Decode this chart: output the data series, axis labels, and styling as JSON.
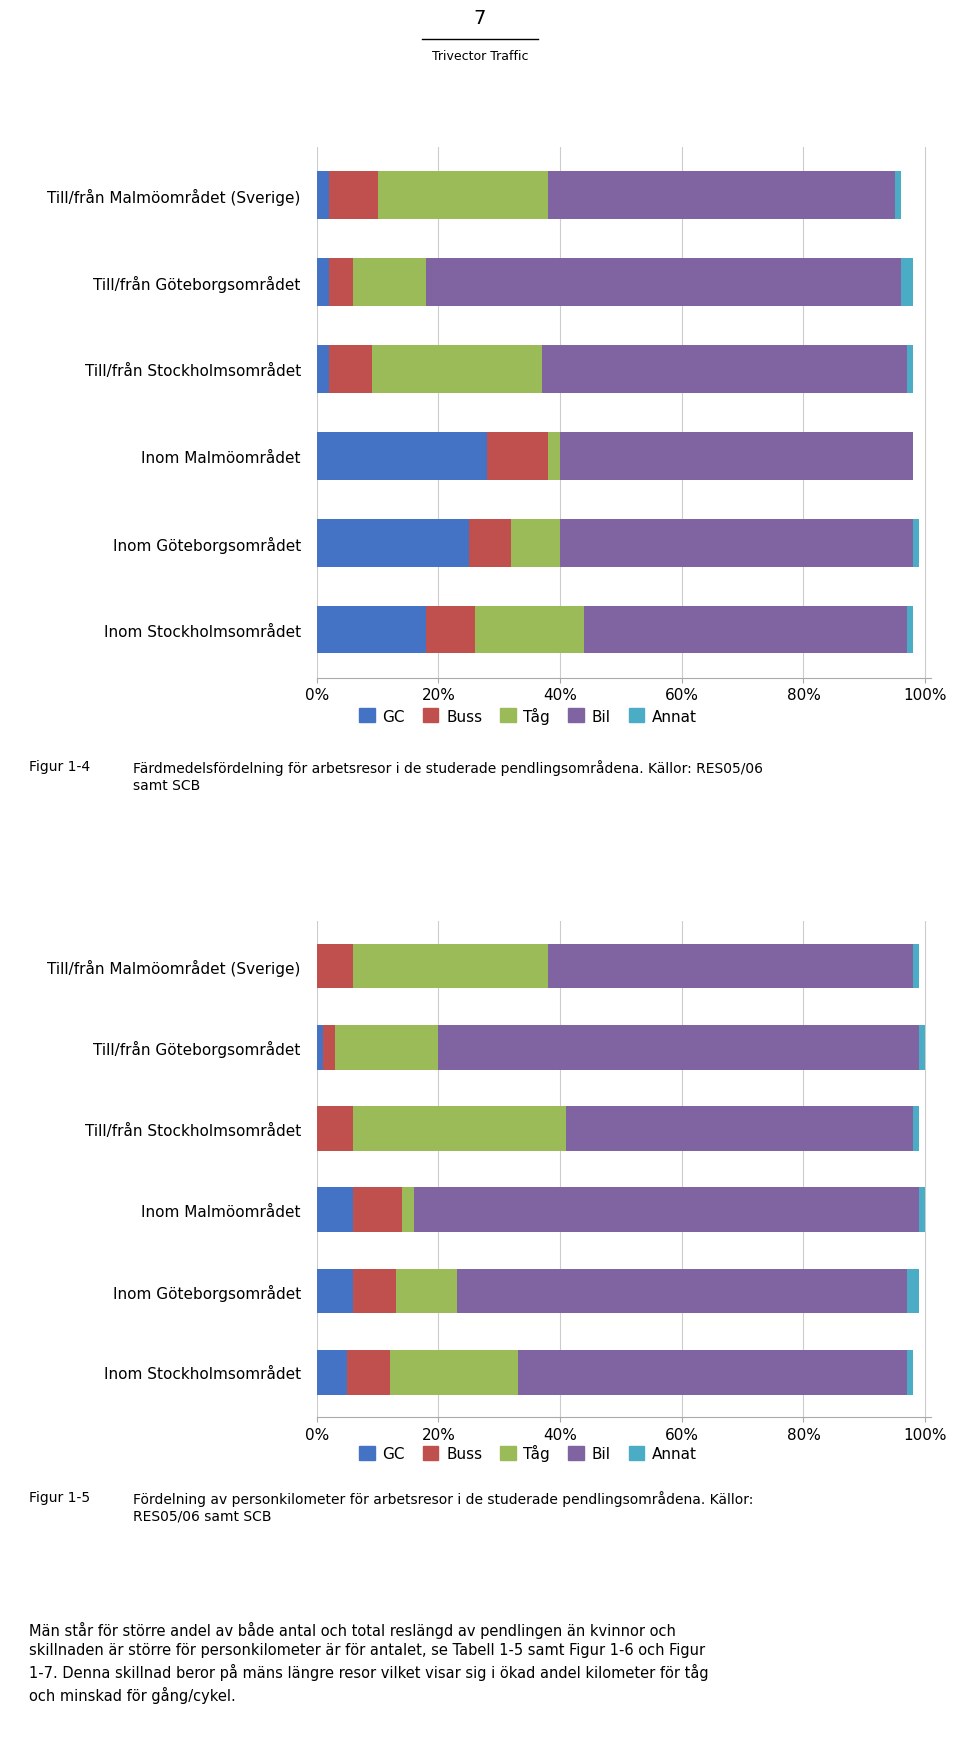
{
  "chart1": {
    "categories": [
      "Till/från Malmöområdet (Sverige)",
      "Till/från Göteborgsområdet",
      "Till/från Stockholmsområdet",
      "Inom Malmöområdet",
      "Inom Göteborgsområdet",
      "Inom Stockholmsområdet"
    ],
    "data": {
      "GC": [
        2,
        2,
        2,
        28,
        25,
        18
      ],
      "Buss": [
        8,
        4,
        7,
        10,
        7,
        8
      ],
      "Tåg": [
        28,
        12,
        28,
        2,
        8,
        18
      ],
      "Bil": [
        57,
        78,
        60,
        58,
        58,
        53
      ],
      "Annat": [
        1,
        2,
        1,
        0,
        1,
        1
      ]
    }
  },
  "chart2": {
    "categories": [
      "Till/från Malmöområdet (Sverige)",
      "Till/från Göteborgsområdet",
      "Till/från Stockholmsområdet",
      "Inom Malmöområdet",
      "Inom Göteborgsområdet",
      "Inom Stockholmsområdet"
    ],
    "data": {
      "GC": [
        0,
        1,
        0,
        6,
        6,
        5
      ],
      "Buss": [
        6,
        2,
        6,
        8,
        7,
        7
      ],
      "Tåg": [
        32,
        17,
        35,
        2,
        10,
        21
      ],
      "Bil": [
        60,
        79,
        57,
        83,
        74,
        64
      ],
      "Annat": [
        1,
        1,
        1,
        1,
        2,
        1
      ]
    }
  },
  "colors": {
    "GC": "#4472C4",
    "Buss": "#C0504D",
    "Tåg": "#9BBB59",
    "Bil": "#8064A2",
    "Annat": "#4BACC6"
  },
  "legend_labels": [
    "GC",
    "Buss",
    "Tåg",
    "Bil",
    "Annat"
  ],
  "page_number": "7",
  "page_footer": "Trivector Traffic",
  "caption1_label": "Figur 1-4",
  "caption1_text": "Färdmedelsfördelning för arbetsresor i de studerade pendlingsområdena. Källor: RES05/06\nsamt SCB",
  "caption2_label": "Figur 1-5",
  "caption2_text": "Fördelning av personkilometer för arbetsresor i de studerade pendlingsområdena. Källor:\nRES05/06 samt SCB",
  "body_text": "Män står för större andel av både antal och total reslängd av pendlingen än kvinnor och skillnaden är större för personkilometer är för antalet, se Tabell 1-5 samt Figur 1-6 och Figur 1-7. Denna skillnad beror på mäns längre resor vilket visar sig i ökad andel kilometer för tåg och minskad för gång/cykel."
}
